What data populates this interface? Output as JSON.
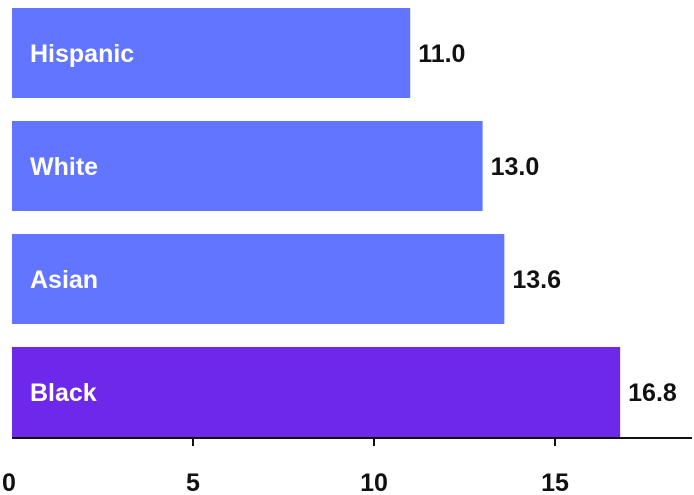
{
  "chart_data": {
    "type": "bar",
    "orientation": "horizontal",
    "title": "",
    "xlabel": "",
    "ylabel": "",
    "categories": [
      "Hispanic",
      "White",
      "Asian",
      "Black"
    ],
    "values": [
      11.0,
      13.0,
      13.6,
      16.8
    ],
    "value_labels": [
      "11.0",
      "13.0",
      "13.6",
      "16.8"
    ],
    "bar_colors": [
      "#6175ff",
      "#6175ff",
      "#6175ff",
      "#6e28e9"
    ],
    "xlim": [
      0,
      19
    ],
    "xticks": [
      0,
      5,
      10,
      15
    ],
    "xtick_labels": [
      "0",
      "5",
      "10",
      "15"
    ],
    "grid": false,
    "legend": "none"
  }
}
